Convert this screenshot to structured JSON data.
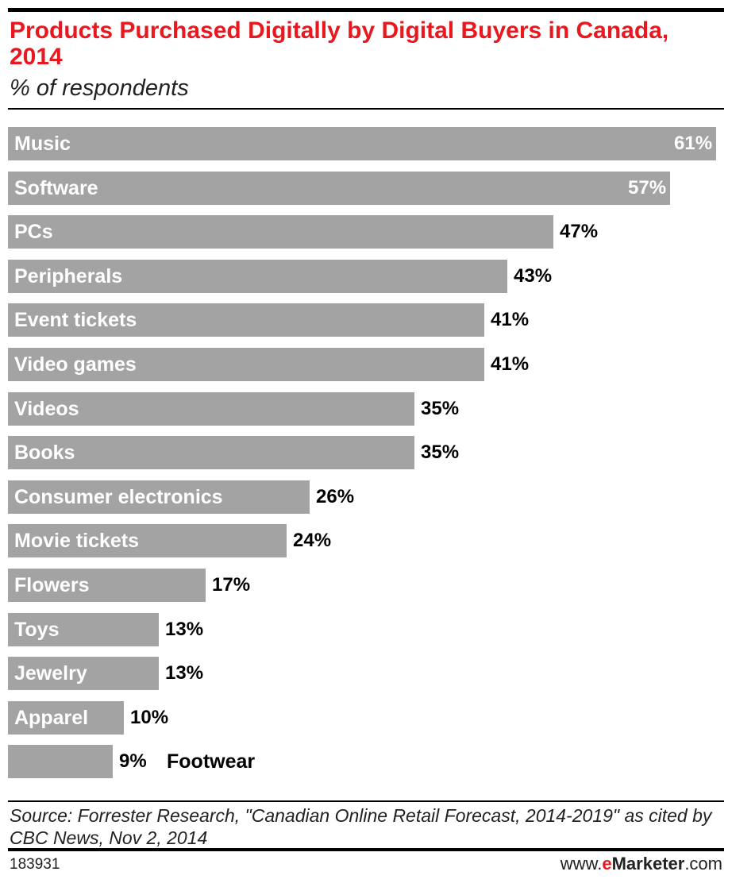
{
  "header": {
    "title": "Products Purchased Digitally by Digital Buyers in Canada, 2014",
    "subtitle": "% of respondents"
  },
  "colors": {
    "bar": "#a3a3a3",
    "title": "#e8181e",
    "rule": "#000000"
  },
  "chart_data": {
    "type": "bar",
    "orientation": "horizontal",
    "title": "Products Purchased Digitally by Digital Buyers in Canada, 2014",
    "subtitle": "% of respondents",
    "categories": [
      "Music",
      "Software",
      "PCs",
      "Peripherals",
      "Event tickets",
      "Video games",
      "Videos",
      "Books",
      "Consumer electronics",
      "Movie tickets",
      "Flowers",
      "Toys",
      "Jewelry",
      "Apparel",
      "Footwear"
    ],
    "values": [
      61,
      57,
      47,
      43,
      41,
      41,
      35,
      35,
      26,
      24,
      17,
      13,
      13,
      10,
      9
    ],
    "value_labels": [
      "61%",
      "57%",
      "47%",
      "43%",
      "41%",
      "41%",
      "35%",
      "35%",
      "26%",
      "24%",
      "17%",
      "13%",
      "13%",
      "10%",
      "9%"
    ],
    "unit": "%",
    "xlim": [
      0,
      61
    ],
    "grid": false,
    "legend": "none"
  },
  "footer": {
    "source": "Source: Forrester Research, \"Canadian Online Retail Forecast, 2014-2019\" as cited by CBC News, Nov 2, 2014",
    "chart_id": "183931",
    "brand_prefix": "www.",
    "brand_e": "e",
    "brand_name": "Marketer",
    "brand_suffix": ".com"
  }
}
